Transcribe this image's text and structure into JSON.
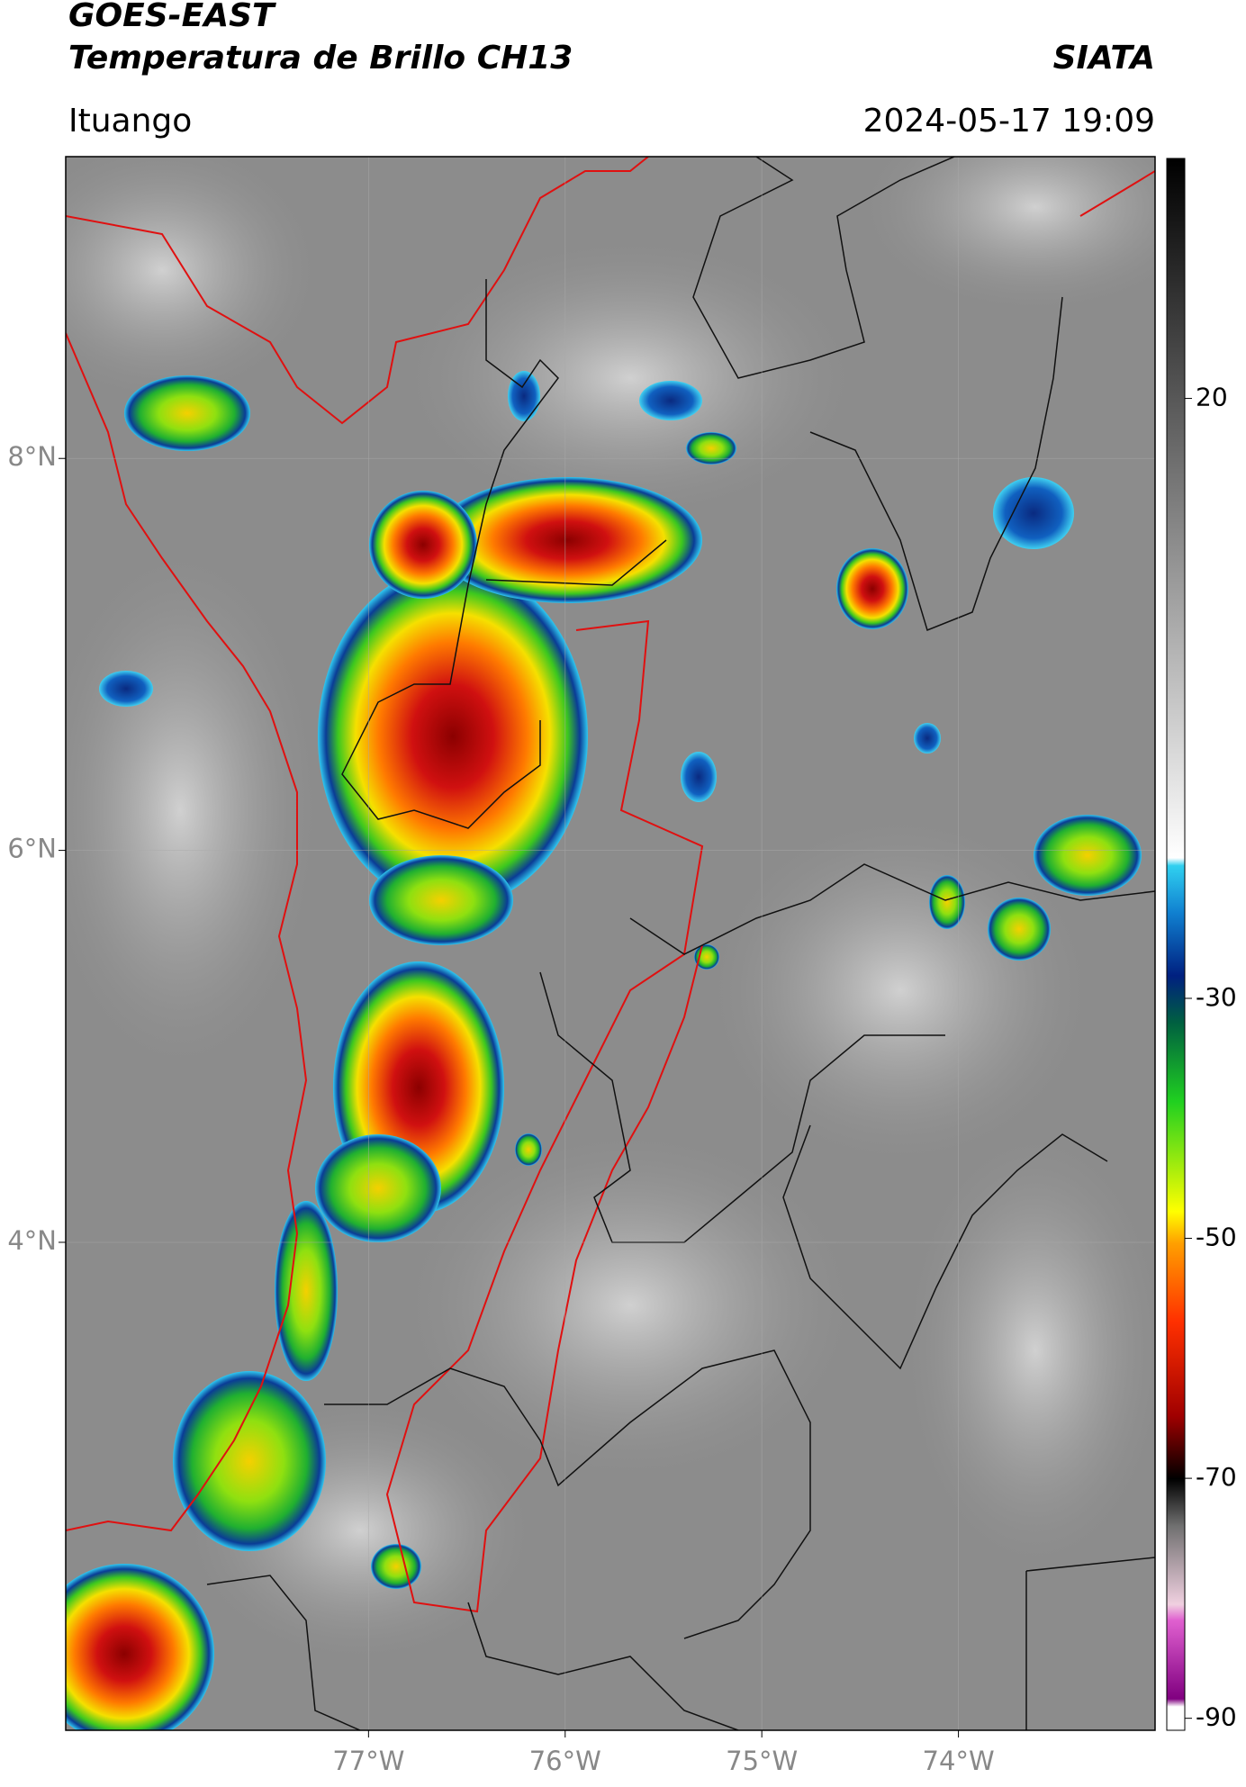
{
  "header": {
    "title": "GOES-EAST",
    "subtitle": "Temperatura de Brillo CH13",
    "source": "SIATA",
    "location": "Ituango",
    "datetime": "2024-05-17 19:09"
  },
  "map": {
    "lat_range": [
      1.51,
      9.54
    ],
    "lon_range": [
      -78.54,
      -73.0
    ],
    "lat_ticks": [
      {
        "value": 8,
        "label": "8°N"
      },
      {
        "value": 6,
        "label": "6°N"
      },
      {
        "value": 4,
        "label": "4°N"
      }
    ],
    "lon_ticks": [
      {
        "value": -77,
        "label": "77°W"
      },
      {
        "value": -76,
        "label": "76°W"
      },
      {
        "value": -75,
        "label": "75°W"
      },
      {
        "value": -74,
        "label": "74°W"
      }
    ]
  },
  "colorbar": {
    "lim": [
      -91,
      40
    ],
    "ticks": [
      20,
      -30,
      -50,
      -70,
      -90
    ]
  }
}
